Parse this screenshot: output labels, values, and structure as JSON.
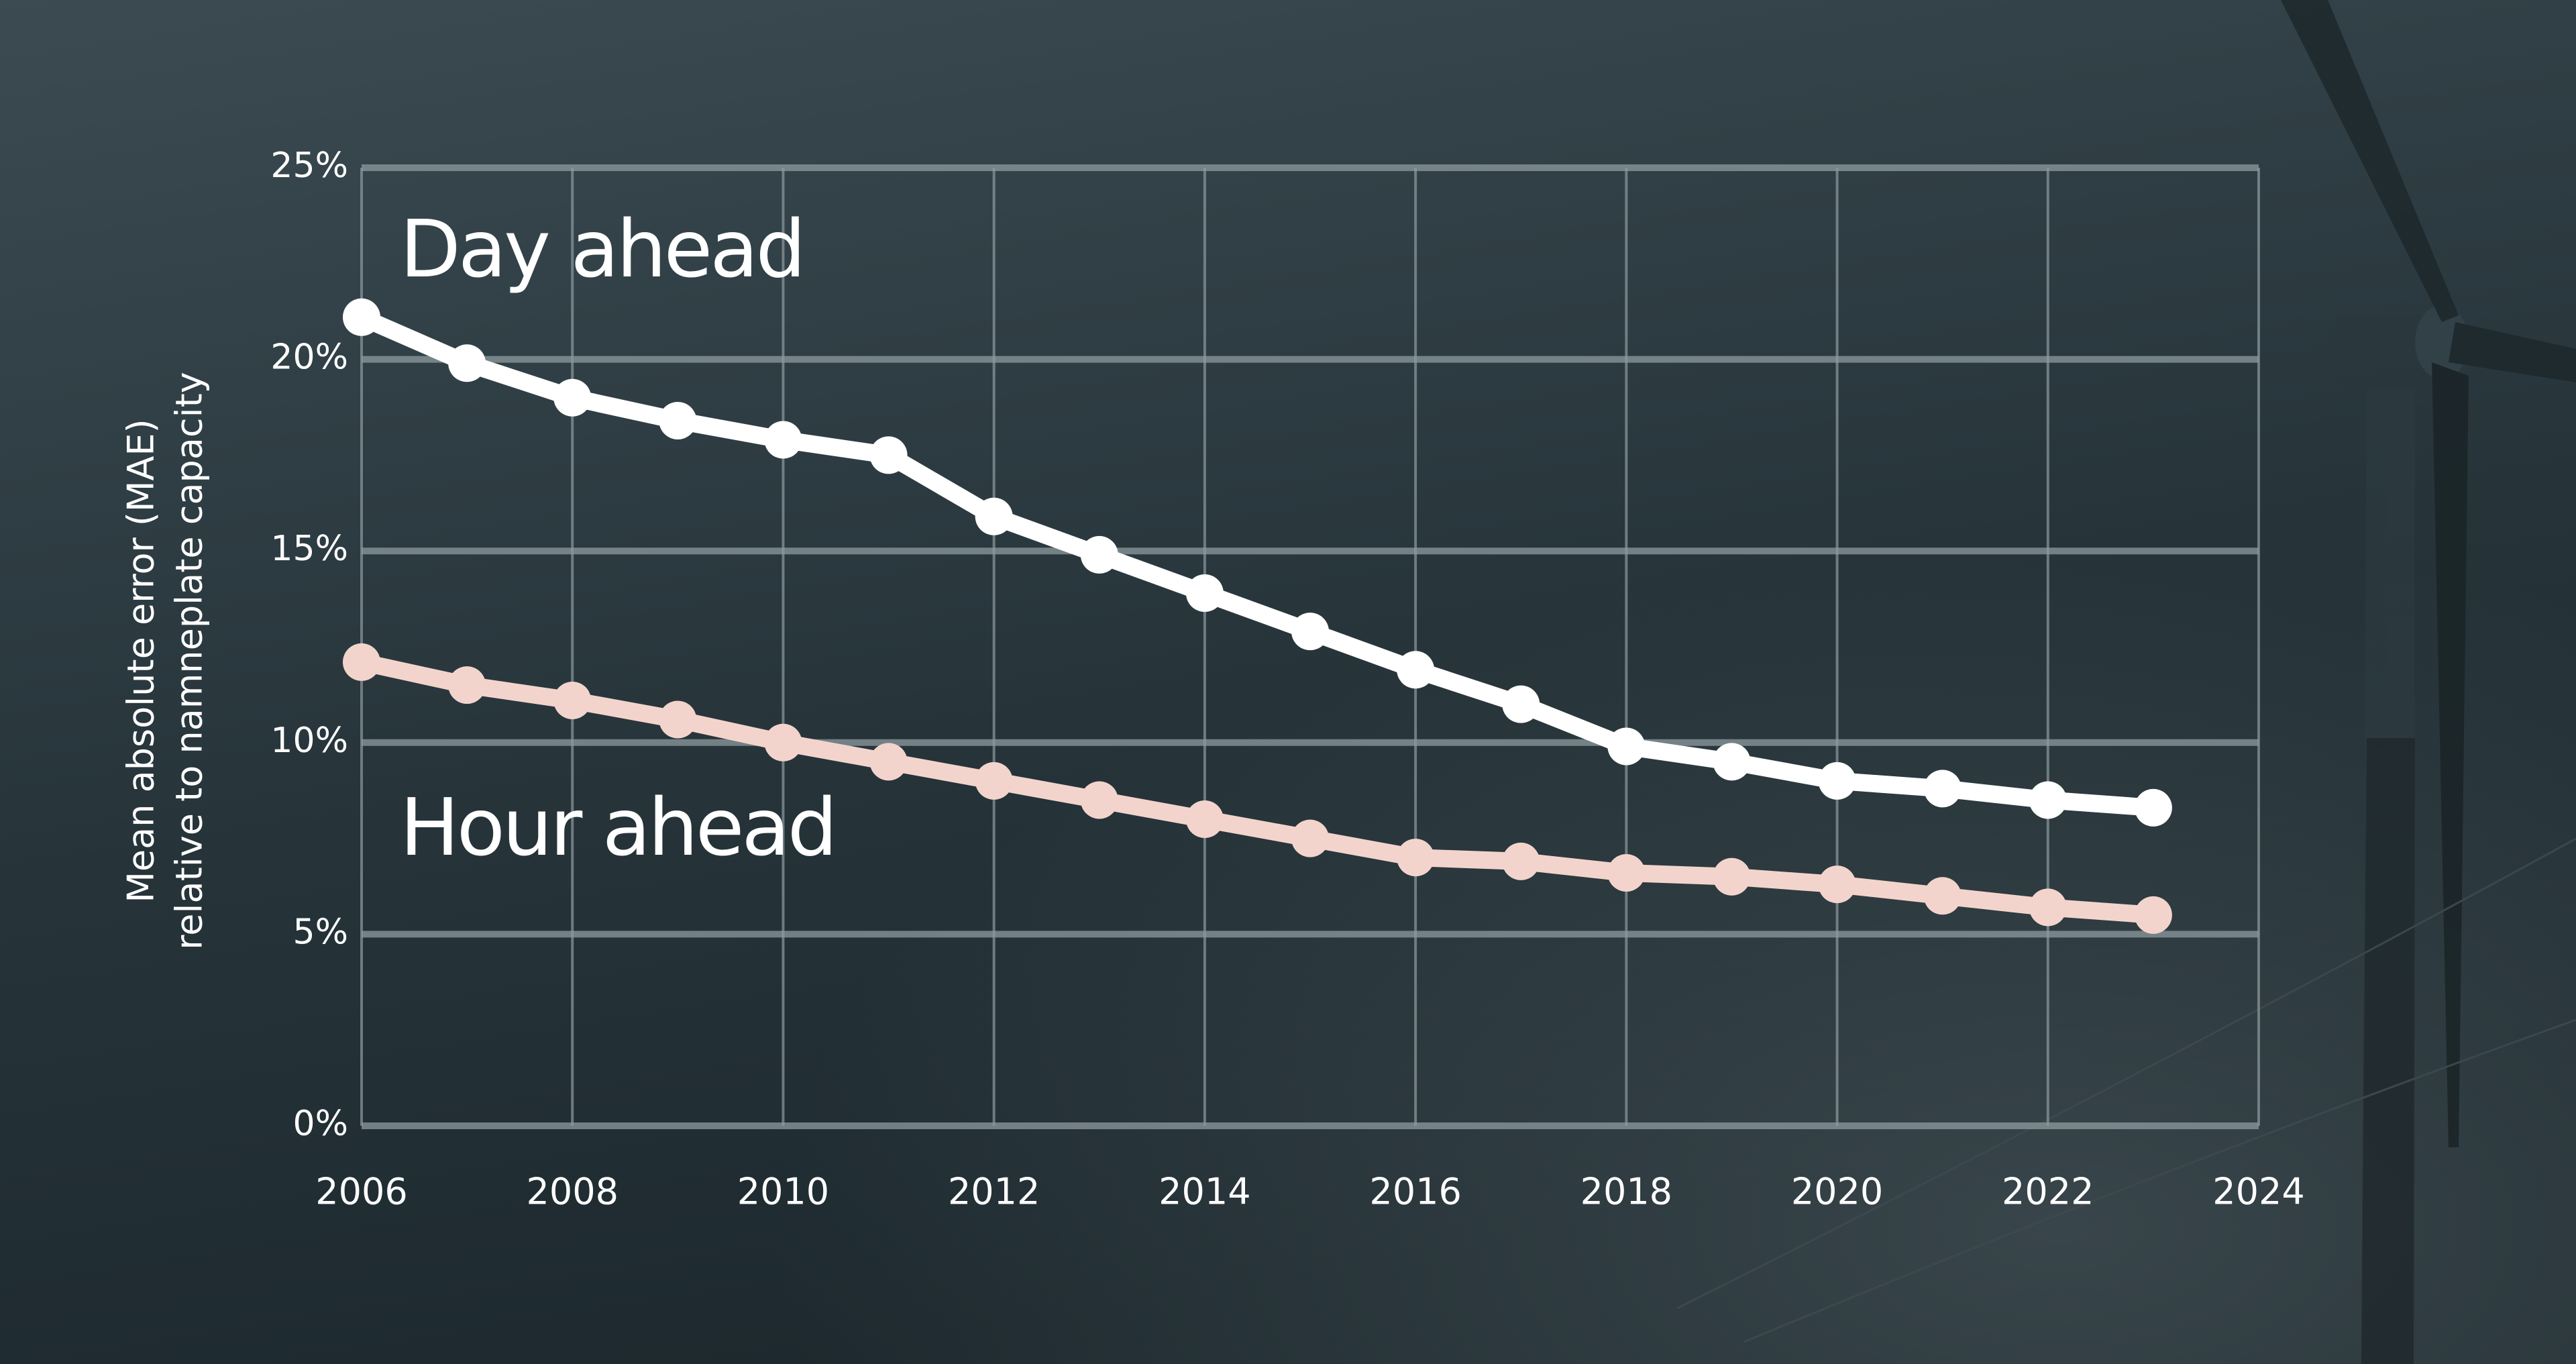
{
  "chart_data": {
    "type": "line",
    "y_label": [
      "Mean absolute error (MAE)",
      "relative to namneplate capacity"
    ],
    "x": [
      2006,
      2007,
      2008,
      2009,
      2010,
      2011,
      2012,
      2013,
      2014,
      2015,
      2016,
      2017,
      2018,
      2019,
      2020,
      2021,
      2022,
      2023
    ],
    "series": [
      {
        "name": "Day ahead",
        "color": "#ffffff",
        "values": [
          21.1,
          19.9,
          19.0,
          18.4,
          17.9,
          17.5,
          15.9,
          14.9,
          13.9,
          12.9,
          11.9,
          11.0,
          9.9,
          9.5,
          9.0,
          8.8,
          8.5,
          8.3
        ]
      },
      {
        "name": "Hour ahead",
        "color": "#f3d4cc",
        "values": [
          12.1,
          11.5,
          11.1,
          10.6,
          10.0,
          9.5,
          9.0,
          8.5,
          8.0,
          7.5,
          7.0,
          6.9,
          6.6,
          6.5,
          6.3,
          6.0,
          5.7,
          5.5
        ]
      }
    ],
    "xlim": [
      2006,
      2024
    ],
    "xticks": [
      2006,
      2008,
      2010,
      2012,
      2014,
      2016,
      2018,
      2020,
      2022,
      2024
    ],
    "ylim": [
      0,
      25
    ],
    "yticks": [
      {
        "value": 0,
        "label": "0%"
      },
      {
        "value": 5,
        "label": "5%"
      },
      {
        "value": 10,
        "label": "10%"
      },
      {
        "value": 15,
        "label": "15%"
      },
      {
        "value": 20,
        "label": "20%"
      },
      {
        "value": 25,
        "label": "25%"
      }
    ],
    "grid": true
  }
}
